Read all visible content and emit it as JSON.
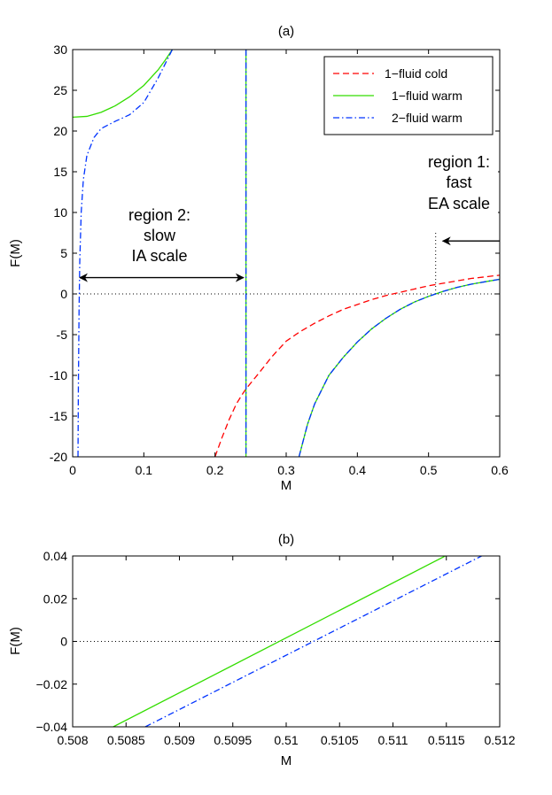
{
  "chart_data": [
    {
      "type": "line",
      "title": "(a)",
      "xlabel": "M",
      "ylabel": "F(M)",
      "xlim": [
        0,
        0.6
      ],
      "ylim": [
        -20,
        30
      ],
      "xticks": [
        0,
        0.1,
        0.2,
        0.3,
        0.4,
        0.5,
        0.6
      ],
      "xtick_labels": [
        "0",
        "0.1",
        "0.2",
        "0.3",
        "0.4",
        "0.5",
        "0.6"
      ],
      "yticks": [
        -20,
        -15,
        -10,
        -5,
        0,
        5,
        10,
        15,
        20,
        25,
        30
      ],
      "ytick_labels": [
        "-20",
        "-15",
        "-10",
        "-5",
        "0",
        "5",
        "10",
        "15",
        "20",
        "25",
        "30"
      ],
      "legend": [
        "1−fluid cold",
        "1−fluid warm",
        "2−fluid warm"
      ],
      "legend_position": "top-right",
      "series": [
        {
          "name": "1−fluid cold",
          "color": "#ff0000",
          "style": "dashed",
          "segments": [
            [
              [
                0.2,
                -20
              ],
              [
                0.21,
                -17.6
              ],
              [
                0.22,
                -15.4
              ],
              [
                0.23,
                -13.5
              ],
              [
                0.24,
                -12.1
              ],
              [
                0.245,
                -11.5
              ],
              [
                0.26,
                -9.9
              ],
              [
                0.28,
                -7.7
              ],
              [
                0.3,
                -5.8
              ],
              [
                0.32,
                -4.6
              ],
              [
                0.34,
                -3.6
              ],
              [
                0.36,
                -2.7
              ],
              [
                0.38,
                -1.9
              ],
              [
                0.4,
                -1.3
              ],
              [
                0.42,
                -0.7
              ],
              [
                0.44,
                -0.2
              ],
              [
                0.46,
                0.2
              ],
              [
                0.48,
                0.6
              ],
              [
                0.5,
                1.0
              ],
              [
                0.52,
                1.3
              ],
              [
                0.54,
                1.6
              ],
              [
                0.56,
                1.9
              ],
              [
                0.58,
                2.1
              ],
              [
                0.6,
                2.3
              ]
            ]
          ]
        },
        {
          "name": "1−fluid warm",
          "color": "#33dd00",
          "style": "solid",
          "segments": [
            [
              [
                0.0,
                21.7
              ],
              [
                0.02,
                21.8
              ],
              [
                0.04,
                22.3
              ],
              [
                0.06,
                23.1
              ],
              [
                0.08,
                24.2
              ],
              [
                0.1,
                25.6
              ],
              [
                0.12,
                27.5
              ],
              [
                0.13,
                28.7
              ],
              [
                0.14,
                30
              ]
            ],
            [
              [
                0.2435,
                30
              ],
              [
                0.2435,
                -20
              ]
            ],
            [
              [
                0.318,
                -20
              ],
              [
                0.33,
                -16.0
              ],
              [
                0.34,
                -13.5
              ],
              [
                0.36,
                -10.0
              ],
              [
                0.38,
                -7.8
              ],
              [
                0.4,
                -5.9
              ],
              [
                0.42,
                -4.3
              ],
              [
                0.44,
                -3.0
              ],
              [
                0.46,
                -1.9
              ],
              [
                0.48,
                -1.0
              ],
              [
                0.5,
                -0.3
              ],
              [
                0.51,
                0.0
              ],
              [
                0.52,
                0.3
              ],
              [
                0.54,
                0.8
              ],
              [
                0.56,
                1.2
              ],
              [
                0.58,
                1.5
              ],
              [
                0.6,
                1.8
              ]
            ]
          ]
        },
        {
          "name": "2−fluid warm",
          "color": "#0033ff",
          "style": "dashdot",
          "segments": [
            [
              [
                0.0075,
                -20
              ],
              [
                0.008,
                -12
              ],
              [
                0.009,
                -2
              ],
              [
                0.01,
                4
              ],
              [
                0.012,
                10
              ],
              [
                0.015,
                14
              ],
              [
                0.02,
                17
              ],
              [
                0.03,
                19.2
              ],
              [
                0.04,
                20.3
              ],
              [
                0.06,
                21.2
              ],
              [
                0.08,
                22.0
              ],
              [
                0.1,
                23.5
              ],
              [
                0.12,
                26.5
              ],
              [
                0.14,
                30
              ]
            ],
            [
              [
                0.2435,
                30
              ],
              [
                0.2435,
                -20
              ]
            ],
            [
              [
                0.318,
                -20
              ],
              [
                0.33,
                -16.0
              ],
              [
                0.34,
                -13.5
              ],
              [
                0.36,
                -10.0
              ],
              [
                0.38,
                -7.8
              ],
              [
                0.4,
                -5.9
              ],
              [
                0.42,
                -4.3
              ],
              [
                0.44,
                -3.0
              ],
              [
                0.46,
                -1.9
              ],
              [
                0.48,
                -1.0
              ],
              [
                0.5,
                -0.3
              ],
              [
                0.51,
                0.0
              ],
              [
                0.52,
                0.3
              ],
              [
                0.54,
                0.8
              ],
              [
                0.56,
                1.2
              ],
              [
                0.58,
                1.5
              ],
              [
                0.6,
                1.8
              ]
            ]
          ]
        }
      ],
      "reference_lines": [
        {
          "kind": "horizontal",
          "y": 0,
          "style": "dotted"
        },
        {
          "kind": "vertical",
          "x": 0.51,
          "y_from": 0,
          "y_to": 7.5,
          "style": "dotted"
        }
      ],
      "annotations": [
        {
          "lines": [
            "region 2:",
            "slow",
            "IA scale"
          ],
          "arrow": {
            "from_x": 0.01,
            "to_x": 0.24,
            "y": 2.0,
            "double": true
          }
        },
        {
          "lines": [
            "region 1:",
            "fast",
            "EA scale"
          ],
          "arrow": {
            "from_x": 0.6,
            "to_x": 0.52,
            "y": 6.5,
            "double": false
          }
        }
      ]
    },
    {
      "type": "line",
      "title": "(b)",
      "xlabel": "M",
      "ylabel": "F(M)",
      "xlim": [
        0.508,
        0.512
      ],
      "ylim": [
        -0.04,
        0.04
      ],
      "xticks": [
        0.508,
        0.5085,
        0.509,
        0.5095,
        0.51,
        0.5105,
        0.511,
        0.5115,
        0.512
      ],
      "xtick_labels": [
        "0.508",
        "0.5085",
        "0.509",
        "0.5095",
        "0.51",
        "0.5105",
        "0.511",
        "0.5115",
        "0.512"
      ],
      "yticks": [
        -0.04,
        -0.02,
        0,
        0.02,
        0.04
      ],
      "ytick_labels": [
        "−0.04",
        "−0.02",
        "0",
        "0.02",
        "0.04"
      ],
      "series": [
        {
          "name": "1−fluid warm",
          "color": "#33dd00",
          "style": "solid",
          "segments": [
            [
              [
                0.50838,
                -0.04
              ],
              [
                0.51149,
                0.04
              ]
            ]
          ]
        },
        {
          "name": "2−fluid warm",
          "color": "#0033ff",
          "style": "dashdot",
          "segments": [
            [
              [
                0.50868,
                -0.04
              ],
              [
                0.51183,
                0.04
              ]
            ]
          ]
        }
      ],
      "reference_lines": [
        {
          "kind": "horizontal",
          "y": 0,
          "style": "dotted"
        }
      ]
    }
  ]
}
